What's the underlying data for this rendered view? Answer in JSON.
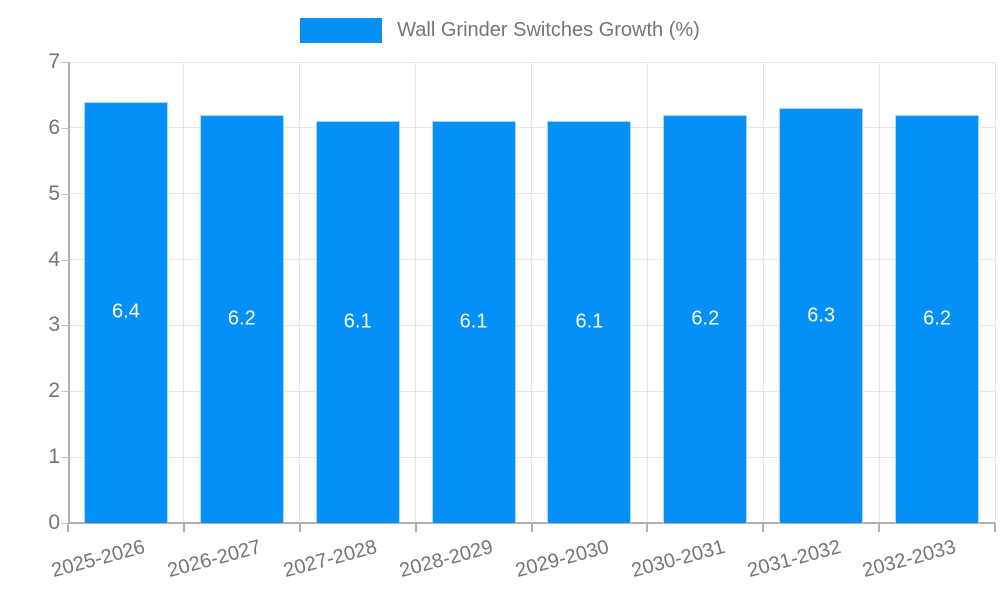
{
  "chart_data": {
    "type": "bar",
    "title": "Wall Grinder Switches Growth (%)",
    "legend_position": "top",
    "categories": [
      "2025-2026",
      "2026-2027",
      "2027-2028",
      "2028-2029",
      "2029-2030",
      "2030-2031",
      "2031-2032",
      "2032-2033"
    ],
    "values": [
      6.4,
      6.2,
      6.1,
      6.1,
      6.1,
      6.2,
      6.3,
      6.2
    ],
    "bar_value_labels": [
      "6.4",
      "6.2",
      "6.1",
      "6.1",
      "6.1",
      "6.2",
      "6.3",
      "6.2"
    ],
    "xlabel": "",
    "ylabel": "",
    "ylim": [
      0,
      7
    ],
    "yticks": [
      0,
      1,
      2,
      3,
      4,
      5,
      6,
      7
    ],
    "grid": true,
    "colors": {
      "bar": "#0590F8",
      "bar_border": "#ADD8FA",
      "bar_label_text": "#FFFFFF",
      "grid_line": "#E6E6E6",
      "axis_line": "#B0B0B0",
      "tick_text": "#757575",
      "legend_text": "#757575"
    }
  }
}
